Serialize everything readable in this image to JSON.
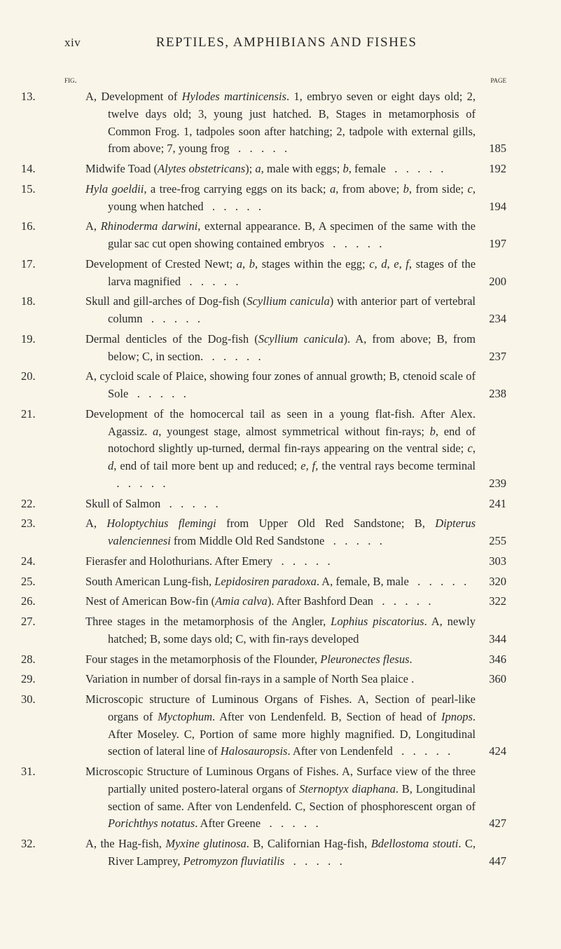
{
  "header": {
    "roman": "xiv",
    "title": "REPTILES, AMPHIBIANS AND FISHES"
  },
  "column_labels": {
    "left": "fig.",
    "right": "page"
  },
  "entries": [
    {
      "num": "13.",
      "text_html": "A, Development of <i>Hylodes martinicensis</i>. 1, embryo seven or eight days old; 2, twelve days old; 3, young just hatched. B, Stages in metamorphosis of Common Frog. 1, tadpoles soon after hatching; 2, tadpole with external gills, from above; 7, young frog",
      "page": "185"
    },
    {
      "num": "14.",
      "text_html": "Midwife Toad (<i>Alytes obstetricans</i>); <i>a</i>, male with eggs; <i>b</i>, female",
      "page": "192"
    },
    {
      "num": "15.",
      "text_html": "<i>Hyla goeldii</i>, a tree-frog carrying eggs on its back; <i>a</i>, from above; <i>b</i>, from side; <i>c</i>, young when hatched",
      "page": "194"
    },
    {
      "num": "16.",
      "text_html": "A, <i>Rhinoderma darwini</i>, external appearance. B, A specimen of the same with the gular sac cut open showing contained embryos",
      "page": "197"
    },
    {
      "num": "17.",
      "text_html": "Development of Crested Newt; <i>a</i>, <i>b</i>, stages within the egg; <i>c</i>, <i>d</i>, <i>e</i>, <i>f</i>, stages of the larva magnified",
      "page": "200"
    },
    {
      "num": "18.",
      "text_html": "Skull and gill-arches of Dog-fish (<i>Scyllium canicula</i>) with anterior part of vertebral column",
      "page": "234"
    },
    {
      "num": "19.",
      "text_html": "Dermal denticles of the Dog-fish (<i>Scyllium canicula</i>). A, from above; B, from below; C, in section.",
      "page": "237"
    },
    {
      "num": "20.",
      "text_html": "A, cycloid scale of Plaice, showing four zones of annual growth; B, ctenoid scale of Sole",
      "page": "238"
    },
    {
      "num": "21.",
      "text_html": "Development of the homocercal tail as seen in a young flat-fish. After Alex. Agassiz. <i>a</i>, youngest stage, almost symmetrical without fin-rays; <i>b</i>, end of notochord slightly up-turned, dermal fin-rays appearing on the ventral side; <i>c</i>, <i>d</i>, end of tail more bent up and reduced; <i>e</i>, <i>f</i>, the ventral rays become terminal",
      "page": "239"
    },
    {
      "num": "22.",
      "text_html": "Skull of Salmon",
      "page": "241"
    },
    {
      "num": "23.",
      "text_html": "A, <i>Holoptychius flemingi</i> from Upper Old Red Sandstone; B, <i>Dipterus valenciennesi</i> from Middle Old Red Sandstone",
      "page": "255"
    },
    {
      "num": "24.",
      "text_html": "Fierasfer and Holothurians. After Emery",
      "page": "303"
    },
    {
      "num": "25.",
      "text_html": "South American Lung-fish, <i>Lepidosiren paradoxa</i>. A, female, B, male",
      "page": "320"
    },
    {
      "num": "26.",
      "text_html": "Nest of American Bow-fin (<i>Amia calva</i>). After Bashford Dean",
      "page": "322"
    },
    {
      "num": "27.",
      "text_html": "Three stages in the metamorphosis of the Angler, <i>Lophius piscatorius</i>. A, newly hatched; B, some days old; C, with fin-rays developed",
      "page": "344",
      "no_leader": true
    },
    {
      "num": "28.",
      "text_html": "Four stages in the metamorphosis of the Flounder, <i>Pleuronectes flesus</i>.",
      "page": "346",
      "no_leader": true
    },
    {
      "num": "29.",
      "text_html": "Variation in number of dorsal fin-rays in a sample of North Sea plaice .",
      "page": "360",
      "no_leader": true
    },
    {
      "num": "30.",
      "text_html": "Microscopic structure of Luminous Organs of Fishes. A, Section of pearl-like organs of <i>Myctophum</i>. After von Lendenfeld. B, Section of head of <i>Ipnops</i>. After Moseley. C, Portion of same more highly magnified. D, Longitudinal section of lateral line of <i>Halosauropsis</i>. After von Lendenfeld",
      "page": "424"
    },
    {
      "num": "31.",
      "text_html": "Microscopic Structure of Luminous Organs of Fishes. A, Surface view of the three partially united postero-lateral organs of <i>Sternoptyx diaphana</i>. B, Longitudinal section of same. After von Lendenfeld. C, Section of phosphorescent organ of <i>Porichthys notatus</i>. After Greene",
      "page": "427"
    },
    {
      "num": "32.",
      "text_html": "A, the Hag-fish, <i>Myxine glutinosa</i>. B, Californian Hag-fish, <i>Bdello­stoma stouti</i>. C, River Lamprey, <i>Petromyzon fluviatilis</i>",
      "page": "447"
    }
  ]
}
